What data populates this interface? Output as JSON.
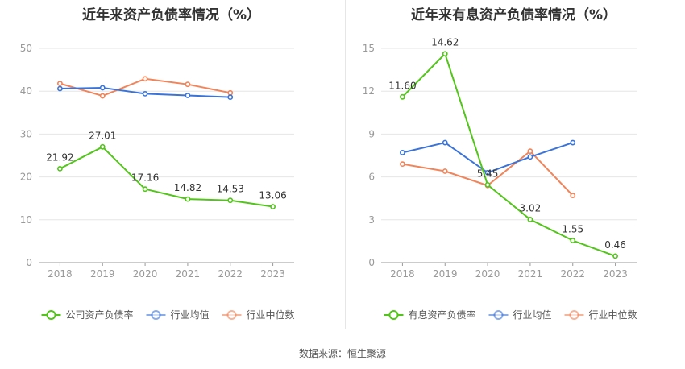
{
  "charts": [
    {
      "title": "近年来资产负债率情况（%）",
      "chart_data": {
        "type": "line",
        "categories": [
          "2018",
          "2019",
          "2020",
          "2021",
          "2022",
          "2023"
        ],
        "ylim": [
          0,
          50
        ],
        "yticks": [
          0,
          10,
          20,
          30,
          40,
          50
        ],
        "grid": true,
        "legend_position": "bottom",
        "series": [
          {
            "name": "公司资产负债率",
            "color": "#52c41a",
            "values": [
              21.92,
              27.01,
              17.16,
              14.82,
              14.53,
              13.06
            ],
            "labels": [
              "21.92",
              "27.01",
              "17.16",
              "14.82",
              "14.53",
              "13.06"
            ]
          },
          {
            "name": "行业均值",
            "color": "#3b74d8",
            "values": [
              40.6,
              40.8,
              39.4,
              39.0,
              38.6,
              null
            ]
          },
          {
            "name": "行业中位数",
            "color": "#f0845a",
            "values": [
              41.8,
              38.9,
              42.9,
              41.6,
              39.6,
              null
            ]
          }
        ]
      }
    },
    {
      "title": "近年来有息资产负债率情况（%）",
      "chart_data": {
        "type": "line",
        "categories": [
          "2018",
          "2019",
          "2020",
          "2021",
          "2022",
          "2023"
        ],
        "ylim": [
          0,
          15
        ],
        "yticks": [
          0,
          3,
          6,
          9,
          12,
          15
        ],
        "grid": true,
        "legend_position": "bottom",
        "series": [
          {
            "name": "有息资产负债率",
            "color": "#52c41a",
            "values": [
              11.6,
              14.62,
              5.45,
              3.02,
              1.55,
              0.46
            ],
            "labels": [
              "11.60",
              "14.62",
              "5.45",
              "3.02",
              "1.55",
              "0.46"
            ]
          },
          {
            "name": "行业均值",
            "color": "#3b74d8",
            "values": [
              7.7,
              8.4,
              6.3,
              7.4,
              8.4,
              null
            ]
          },
          {
            "name": "行业中位数",
            "color": "#f0845a",
            "values": [
              6.9,
              6.4,
              5.4,
              7.8,
              4.7,
              null
            ]
          }
        ]
      }
    }
  ],
  "source_text": "数据来源：恒生聚源"
}
